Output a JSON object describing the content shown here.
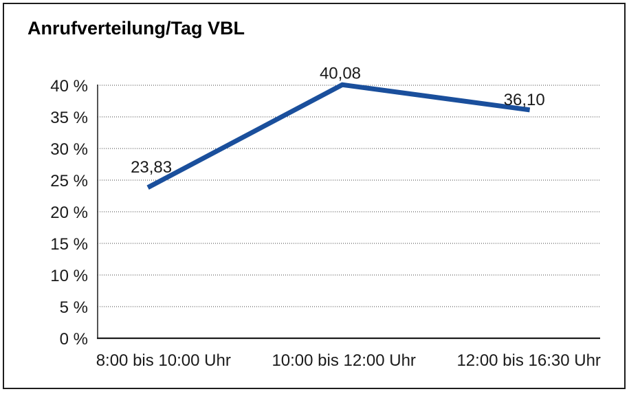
{
  "page": {
    "background": "#ffffff",
    "border_color": "#1c1c1c"
  },
  "chart_data": {
    "type": "line",
    "title": "Anrufverteilung/Tag VBL",
    "categories": [
      "8:00 bis 10:00 Uhr",
      "10:00 bis 12:00 Uhr",
      "12:00 bis 16:30 Uhr"
    ],
    "series": [
      {
        "values": [
          23.83,
          40.08,
          36.1
        ],
        "point_labels": [
          "23,83",
          "40,08",
          "36,10"
        ],
        "color": "#1A4F9C"
      }
    ],
    "xlabel": "",
    "ylabel": "",
    "ylim": [
      0,
      40
    ],
    "ytick_step": 5,
    "ytick_suffix": " %",
    "grid": "horizontal-dotted",
    "legend": "none",
    "line_width": 7
  }
}
